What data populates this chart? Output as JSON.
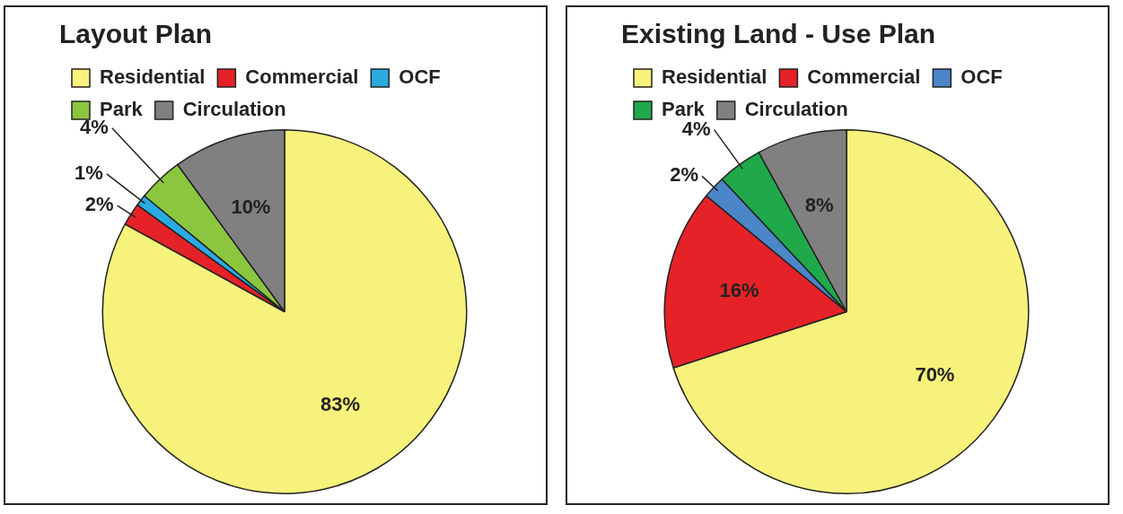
{
  "chart_data": [
    {
      "type": "pie",
      "title": "Layout Plan",
      "categories": [
        "Residential",
        "Commercial",
        "OCF",
        "Park",
        "Circulation"
      ],
      "values": [
        83,
        2,
        1,
        4,
        10
      ],
      "colors": [
        "#f7f27b",
        "#e52227",
        "#29abe2",
        "#8cc63f",
        "#808080"
      ],
      "value_labels": [
        "83%",
        "2%",
        "1%",
        "4%",
        "10%"
      ],
      "legend": "top"
    },
    {
      "type": "pie",
      "title": "Existing Land - Use Plan",
      "categories": [
        "Residential",
        "Commercial",
        "OCF",
        "Park",
        "Circulation"
      ],
      "values": [
        70,
        16,
        2,
        4,
        8
      ],
      "colors": [
        "#f7f27b",
        "#e52227",
        "#4a86c8",
        "#1fa94b",
        "#808080"
      ],
      "value_labels": [
        "70%",
        "16%",
        "2%",
        "4%",
        "8%"
      ],
      "legend": "top"
    }
  ]
}
